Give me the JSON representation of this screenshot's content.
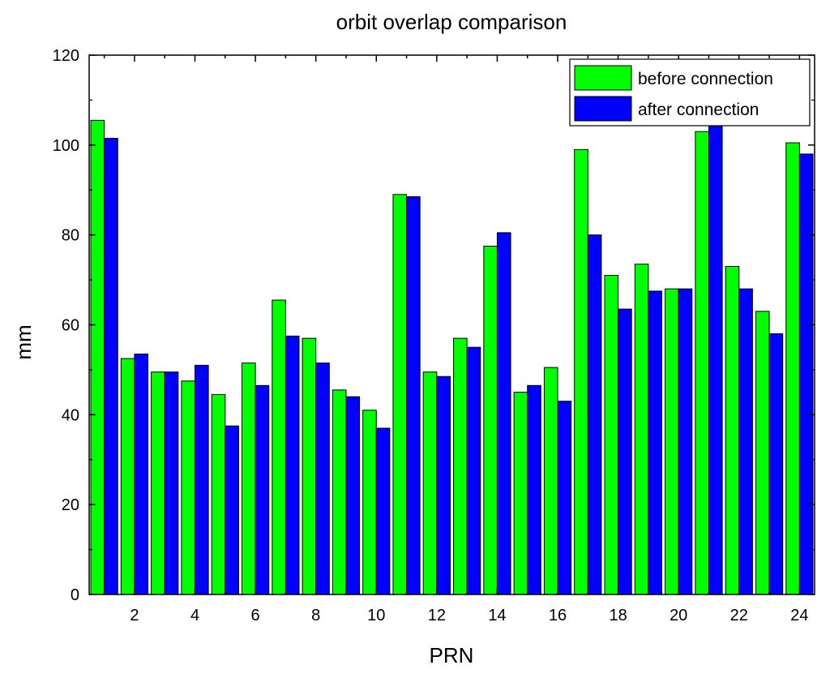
{
  "chart_data": {
    "type": "bar",
    "title": "orbit overlap comparison",
    "xlabel": "PRN",
    "ylabel": "mm",
    "ylim": [
      0,
      120
    ],
    "yticks": [
      0,
      20,
      40,
      60,
      80,
      100,
      120
    ],
    "xticks": [
      2,
      4,
      6,
      8,
      10,
      12,
      14,
      16,
      18,
      20,
      22,
      24
    ],
    "categories": [
      1,
      2,
      3,
      4,
      5,
      6,
      7,
      8,
      9,
      10,
      11,
      12,
      13,
      14,
      15,
      16,
      17,
      18,
      19,
      20,
      21,
      22,
      23,
      24
    ],
    "legend_position": "top-right",
    "series": [
      {
        "name": "before connection",
        "color": "#00ff00",
        "values": [
          105.5,
          52.5,
          49.5,
          47.5,
          44.5,
          51.5,
          65.5,
          57,
          45.5,
          41,
          89,
          49.5,
          57,
          77.5,
          45,
          50.5,
          99,
          71,
          73.5,
          68,
          103,
          73,
          63,
          100.5
        ]
      },
      {
        "name": "after connection",
        "color": "#0000ff",
        "values": [
          101.5,
          53.5,
          49.5,
          51,
          37.5,
          46.5,
          57.5,
          51.5,
          44,
          37,
          88.5,
          48.5,
          55,
          80.5,
          46.5,
          43,
          80,
          63.5,
          67.5,
          68,
          105,
          68,
          58,
          98
        ]
      }
    ]
  }
}
